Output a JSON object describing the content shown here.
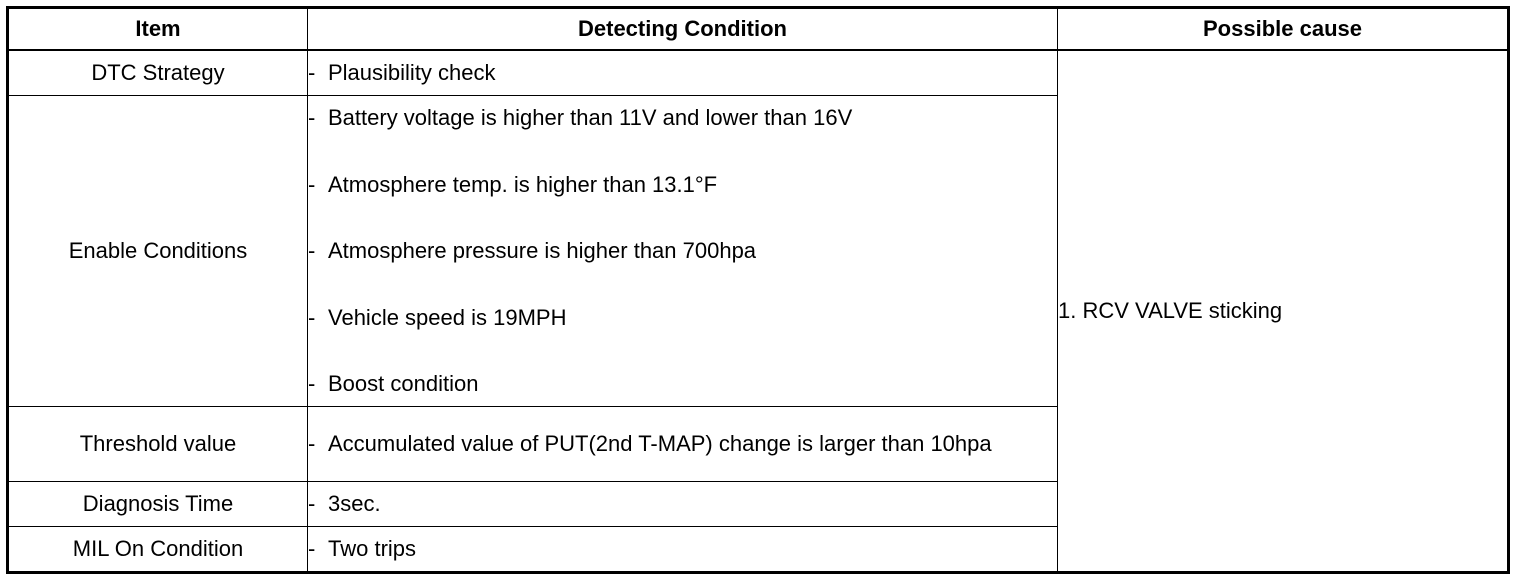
{
  "table": {
    "headers": {
      "item": "Item",
      "condition": "Detecting Condition",
      "cause": "Possible cause"
    },
    "rows": [
      {
        "item": "DTC Strategy",
        "conditions": [
          "Plausibility check"
        ]
      },
      {
        "item": "Enable Conditions",
        "conditions": [
          "Battery voltage is higher than 11V and lower than 16V",
          "Atmosphere temp. is higher than 13.1°F",
          "Atmosphere pressure is higher than 700hpa",
          "Vehicle speed is 19MPH",
          "Boost condition"
        ]
      },
      {
        "item": "Threshold value",
        "conditions": [
          "Accumulated value of PUT(2nd T-MAP) change is larger than 10hpa"
        ]
      },
      {
        "item": "Diagnosis Time",
        "conditions": [
          "3sec."
        ]
      },
      {
        "item": "MIL On Condition",
        "conditions": [
          "Two trips"
        ]
      }
    ],
    "dash": "-",
    "possible_cause": "1. RCV VALVE sticking"
  }
}
